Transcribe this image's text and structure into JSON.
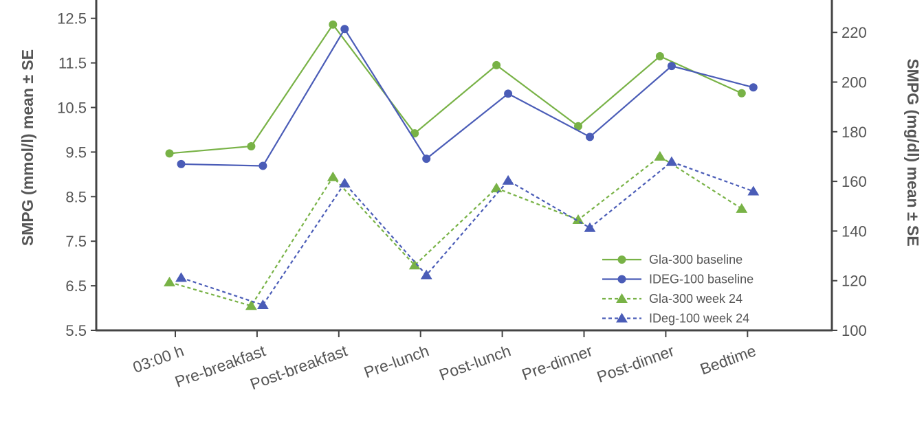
{
  "chart_data": {
    "type": "line",
    "categories": [
      "03:00 h",
      "Pre-breakfast",
      "Post-breakfast",
      "Pre-lunch",
      "Post-lunch",
      "Pre-dinner",
      "Post-dinner",
      "Bedtime"
    ],
    "ylabel_left": "SMPG (mmol/l) mean ± SE",
    "ylabel_right": "SMPG (mg/dl) mean ± SE",
    "yticks_left": [
      "5.5",
      "6.5",
      "7.5",
      "8.5",
      "9.5",
      "10.5",
      "11.5",
      "12.5"
    ],
    "yticks_right": [
      "100",
      "120",
      "140",
      "160",
      "180",
      "200",
      "220"
    ],
    "ylim_left": [
      5.5,
      12.8
    ],
    "ylim_right": [
      100,
      233
    ],
    "legend_position": "bottom-right",
    "series": [
      {
        "name": "Gla-300 baseline",
        "color": "#78b246",
        "style": "solid",
        "marker": "circle",
        "offset": "left",
        "values": [
          9.47,
          9.63,
          12.36,
          9.92,
          11.45,
          10.08,
          11.65,
          10.82
        ]
      },
      {
        "name": "IDEG-100 baseline",
        "color": "#4a5cb7",
        "style": "solid",
        "marker": "circle",
        "offset": "right",
        "values": [
          9.23,
          9.19,
          12.26,
          9.35,
          10.81,
          9.84,
          11.43,
          10.95
        ]
      },
      {
        "name": "Gla-300 week 24",
        "color": "#78b246",
        "style": "dashed",
        "marker": "triangle",
        "offset": "left",
        "values": [
          6.58,
          6.05,
          8.94,
          6.96,
          8.69,
          7.98,
          9.4,
          8.23
        ]
      },
      {
        "name": "IDeg-100 week 24",
        "color": "#4a5cb7",
        "style": "dashed",
        "marker": "triangle",
        "offset": "right",
        "values": [
          6.68,
          6.07,
          8.8,
          6.74,
          8.86,
          7.8,
          9.28,
          8.62
        ]
      }
    ]
  }
}
